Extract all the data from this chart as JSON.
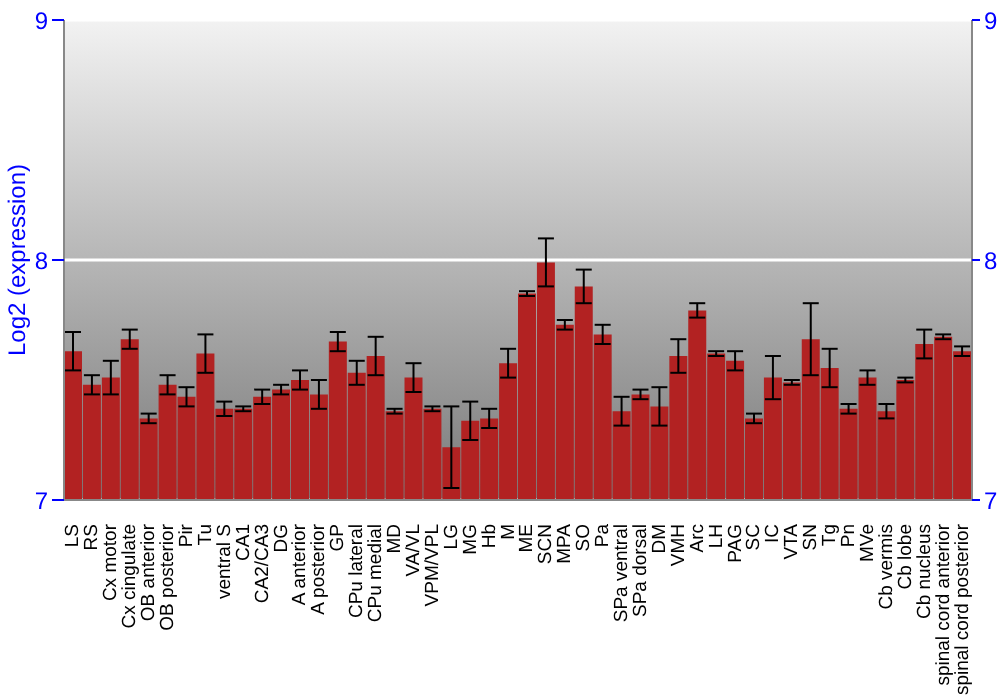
{
  "chart_data": {
    "type": "bar",
    "ylabel": "Log2 (expression)",
    "categories": [
      "LS",
      "RS",
      "Cx motor",
      "Cx cingulate",
      "OB anterior",
      "OB posterior",
      "Pir",
      "Tu",
      "ventral S",
      "CA1",
      "CA2/CA3",
      "DG",
      "A anterior",
      "A posterior",
      "GP",
      "CPu lateral",
      "CPu medial",
      "MD",
      "VA/VL",
      "VPM/VPL",
      "LG",
      "MG",
      "Hb",
      "M",
      "ME",
      "SCN",
      "MPA",
      "SO",
      "Pa",
      "SPa ventral",
      "SPa dorsal",
      "DM",
      "VMH",
      "Arc",
      "LH",
      "PAG",
      "SC",
      "IC",
      "VTA",
      "SN",
      "Tg",
      "Pn",
      "MVe",
      "Cb vermis",
      "Cb lobe",
      "Cb nucleus",
      "spinal cord anterior",
      "spinal cord posterior"
    ],
    "values": [
      7.62,
      7.48,
      7.51,
      7.67,
      7.34,
      7.48,
      7.43,
      7.61,
      7.38,
      7.38,
      7.43,
      7.46,
      7.5,
      7.44,
      7.66,
      7.53,
      7.6,
      7.37,
      7.51,
      7.38,
      7.22,
      7.33,
      7.34,
      7.57,
      7.86,
      7.99,
      7.73,
      7.89,
      7.69,
      7.37,
      7.44,
      7.39,
      7.6,
      7.79,
      7.61,
      7.58,
      7.34,
      7.51,
      7.49,
      7.67,
      7.55,
      7.38,
      7.51,
      7.37,
      7.5,
      7.65,
      7.68,
      7.62
    ],
    "errors": [
      0.08,
      0.04,
      0.07,
      0.04,
      0.02,
      0.04,
      0.04,
      0.08,
      0.03,
      0.01,
      0.03,
      0.02,
      0.04,
      0.06,
      0.04,
      0.05,
      0.08,
      0.01,
      0.06,
      0.01,
      0.17,
      0.08,
      0.04,
      0.06,
      0.01,
      0.1,
      0.02,
      0.07,
      0.04,
      0.06,
      0.02,
      0.08,
      0.07,
      0.03,
      0.01,
      0.04,
      0.02,
      0.09,
      0.01,
      0.15,
      0.08,
      0.02,
      0.03,
      0.03,
      0.01,
      0.06,
      0.01,
      0.02
    ],
    "color": "#b22222",
    "ylim": [
      7,
      9
    ],
    "yticks": [
      7,
      8,
      9
    ],
    "y2lim": [
      7,
      9
    ],
    "y2ticks": [
      7,
      8,
      9
    ],
    "grid": "y"
  }
}
